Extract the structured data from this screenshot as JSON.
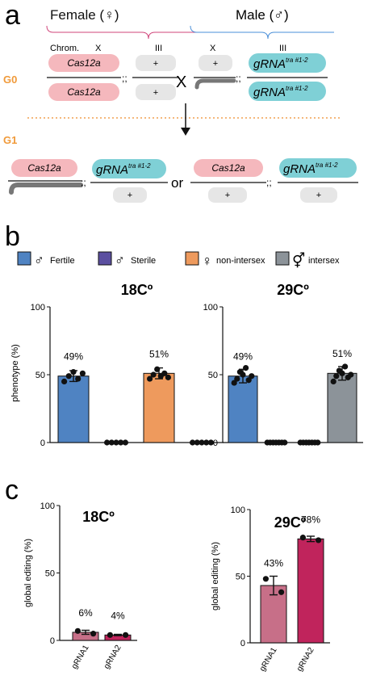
{
  "panel_a": {
    "label": "a",
    "female": "Female (♀)",
    "male": "Male (♂)",
    "chrom": "Chrom.",
    "x": "X",
    "iii": "III",
    "g0": "G0",
    "g1": "G1",
    "cas": "Cas12a",
    "grna": "gRNA",
    "grna_sup": "tra #1-2",
    "plus": "+",
    "sep": ";;",
    "cross": "X",
    "or": "or"
  },
  "panel_b": {
    "label": "b",
    "legend": [
      {
        "label": "Fertile",
        "symbol": "♂",
        "color": "#4f83c2"
      },
      {
        "label": "Sterile",
        "symbol": "♂",
        "color": "#5b4fa0"
      },
      {
        "label": "non-intersex",
        "symbol": "♀",
        "color": "#ee9a5d"
      },
      {
        "label": "intersex",
        "symbol": "⚥",
        "color": "#8c9399"
      }
    ],
    "ylabel": "phenotype (%)"
  },
  "panel_c": {
    "label": "c",
    "ylabel": "global editing (%)"
  },
  "chart_data": [
    {
      "type": "bar",
      "title": "18Cº",
      "ylabel": "phenotype (%)",
      "ylim": [
        0,
        100
      ],
      "yticks": [
        0,
        50,
        100
      ],
      "categories": [
        "Fertile",
        "Sterile",
        "non-intersex",
        "intersex"
      ],
      "values": [
        49,
        0,
        51,
        0
      ],
      "errors": [
        4,
        0,
        4,
        0
      ],
      "value_labels": [
        "49%",
        "",
        "51%",
        ""
      ],
      "colors": [
        "#4f83c2",
        "#5b4fa0",
        "#ee9a5d",
        "#8c9399"
      ],
      "points": [
        [
          45,
          49,
          52,
          47,
          51
        ],
        [
          0,
          0,
          0,
          0,
          0
        ],
        [
          47,
          50,
          54,
          49,
          51,
          48
        ],
        [
          0,
          0,
          0,
          0,
          0
        ]
      ]
    },
    {
      "type": "bar",
      "title": "29Cº",
      "ylabel": "",
      "ylim": [
        0,
        100
      ],
      "yticks": [
        0,
        50,
        100
      ],
      "categories": [
        "Fertile",
        "Sterile",
        "non-intersex",
        "intersex"
      ],
      "values": [
        0.49,
        0,
        0,
        0.51
      ],
      "values_pct": [
        49,
        0,
        0,
        51
      ],
      "errors": [
        5,
        0,
        0,
        5
      ],
      "value_labels": [
        "49%",
        "",
        "",
        "51%"
      ],
      "colors": [
        "#4f83c2",
        "#5b4fa0",
        "#ee9a5d",
        "#8c9399"
      ],
      "points": [
        [
          44,
          47,
          52,
          50,
          55,
          46,
          49
        ],
        [
          0,
          0,
          0,
          0,
          0,
          0,
          0
        ],
        [
          0,
          0,
          0,
          0,
          0,
          0,
          0
        ],
        [
          45,
          49,
          53,
          51,
          56,
          48,
          50
        ]
      ]
    },
    {
      "type": "bar",
      "title": "18Cº",
      "ylabel": "global editing (%)",
      "ylim": [
        0,
        100
      ],
      "yticks": [
        0,
        50,
        100
      ],
      "categories": [
        "gRNA1",
        "gRNA2"
      ],
      "values": [
        6,
        4
      ],
      "errors": [
        1.5,
        0.5
      ],
      "value_labels": [
        "6%",
        "4%"
      ],
      "colors": [
        "#c76f88",
        "#c0245c"
      ],
      "points": [
        [
          7,
          5
        ],
        [
          4,
          4
        ]
      ]
    },
    {
      "type": "bar",
      "title": "29Cº",
      "ylabel": "global editing (%)",
      "ylim": [
        0,
        100
      ],
      "yticks": [
        0,
        50,
        100
      ],
      "categories": [
        "gRNA1",
        "gRNA2"
      ],
      "values": [
        43,
        78
      ],
      "errors": [
        7,
        2
      ],
      "value_labels": [
        "43%",
        "78%"
      ],
      "colors": [
        "#c76f88",
        "#c0245c"
      ],
      "points": [
        [
          48,
          38
        ],
        [
          79,
          77
        ]
      ]
    }
  ]
}
